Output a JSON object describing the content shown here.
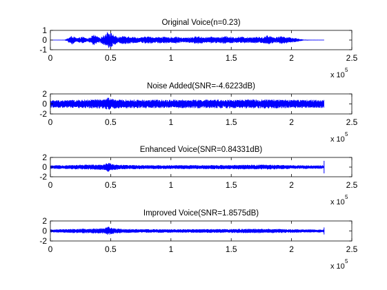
{
  "figure": {
    "background": "#ffffff",
    "signal_color": "#0000ff",
    "axis_color": "#000000"
  },
  "chart_data": [
    {
      "type": "line",
      "title": "Original Voice(n=0.23)",
      "xlabel": "",
      "ylabel": "",
      "xlim": [
        0,
        250000
      ],
      "ylim": [
        -1,
        1
      ],
      "x_ticks": [
        0,
        50000,
        100000,
        150000,
        200000,
        250000
      ],
      "x_tick_labels": [
        "0",
        "0.5",
        "1",
        "1.5",
        "2",
        "2.5"
      ],
      "y_ticks": [
        1,
        0,
        -1
      ],
      "y_tick_labels": [
        "1",
        "0",
        "-1"
      ],
      "x_multiplier_label": "x 10",
      "x_multiplier_exponent": "5",
      "signal_length": 227000,
      "noise_floor": 0.02,
      "envelope": [
        [
          0,
          0.02
        ],
        [
          12000,
          0.03
        ],
        [
          18000,
          0.45
        ],
        [
          22000,
          0.2
        ],
        [
          27000,
          0.35
        ],
        [
          31000,
          0.15
        ],
        [
          36000,
          0.55
        ],
        [
          41000,
          0.25
        ],
        [
          45000,
          0.55
        ],
        [
          48000,
          0.95
        ],
        [
          52000,
          0.6
        ],
        [
          56000,
          0.3
        ],
        [
          62000,
          0.45
        ],
        [
          68000,
          0.35
        ],
        [
          74000,
          0.25
        ],
        [
          80000,
          0.4
        ],
        [
          86000,
          0.3
        ],
        [
          92000,
          0.35
        ],
        [
          98000,
          0.3
        ],
        [
          104000,
          0.35
        ],
        [
          110000,
          0.25
        ],
        [
          116000,
          0.3
        ],
        [
          122000,
          0.4
        ],
        [
          128000,
          0.3
        ],
        [
          134000,
          0.35
        ],
        [
          140000,
          0.3
        ],
        [
          146000,
          0.4
        ],
        [
          152000,
          0.3
        ],
        [
          158000,
          0.35
        ],
        [
          164000,
          0.3
        ],
        [
          170000,
          0.35
        ],
        [
          176000,
          0.3
        ],
        [
          180000,
          0.5
        ],
        [
          186000,
          0.3
        ],
        [
          192000,
          0.4
        ],
        [
          198000,
          0.3
        ],
        [
          204000,
          0.2
        ],
        [
          210000,
          0.05
        ],
        [
          218000,
          0.03
        ],
        [
          227000,
          0.02
        ]
      ]
    },
    {
      "type": "line",
      "title": "Noise Added(SNR=-4.6223dB)",
      "xlabel": "",
      "ylabel": "",
      "xlim": [
        0,
        250000
      ],
      "ylim": [
        -2,
        2
      ],
      "x_ticks": [
        0,
        50000,
        100000,
        150000,
        200000,
        250000
      ],
      "x_tick_labels": [
        "0",
        "0.5",
        "1",
        "1.5",
        "2",
        "2.5"
      ],
      "y_ticks": [
        2,
        0,
        -2
      ],
      "y_tick_labels": [
        "2",
        "0",
        "-2"
      ],
      "x_multiplier_label": "x 10",
      "x_multiplier_exponent": "5",
      "signal_length": 227000,
      "noise_floor": 0.75,
      "envelope": [
        [
          0,
          0.75
        ],
        [
          20000,
          0.8
        ],
        [
          36000,
          0.9
        ],
        [
          45000,
          0.95
        ],
        [
          48000,
          1.3
        ],
        [
          52000,
          0.95
        ],
        [
          60000,
          0.85
        ],
        [
          100000,
          0.85
        ],
        [
          150000,
          0.85
        ],
        [
          180000,
          0.9
        ],
        [
          200000,
          0.85
        ],
        [
          227000,
          0.8
        ]
      ]
    },
    {
      "type": "line",
      "title": "Enhanced Voice(SNR=0.84331dB)",
      "xlabel": "",
      "ylabel": "",
      "xlim": [
        0,
        250000
      ],
      "ylim": [
        -2,
        2
      ],
      "x_ticks": [
        0,
        50000,
        100000,
        150000,
        200000,
        250000
      ],
      "x_tick_labels": [
        "0",
        "0.5",
        "1",
        "1.5",
        "2",
        "2.5"
      ],
      "y_ticks": [
        2,
        0,
        -2
      ],
      "y_tick_labels": [
        "2",
        "0",
        "-2"
      ],
      "x_multiplier_label": "x 10",
      "x_multiplier_exponent": "5",
      "signal_length": 227000,
      "noise_floor": 0.35,
      "envelope": [
        [
          0,
          0.35
        ],
        [
          18000,
          0.45
        ],
        [
          36000,
          0.55
        ],
        [
          45000,
          0.6
        ],
        [
          48000,
          1.0
        ],
        [
          52000,
          0.6
        ],
        [
          62000,
          0.45
        ],
        [
          100000,
          0.4
        ],
        [
          150000,
          0.45
        ],
        [
          180000,
          0.5
        ],
        [
          200000,
          0.4
        ],
        [
          227000,
          0.35
        ]
      ],
      "end_spike": 1.3
    },
    {
      "type": "line",
      "title": "Improved Voice(SNR=1.8575dB)",
      "xlabel": "",
      "ylabel": "",
      "xlim": [
        0,
        250000
      ],
      "ylim": [
        -2,
        2
      ],
      "x_ticks": [
        0,
        50000,
        100000,
        150000,
        200000,
        250000
      ],
      "x_tick_labels": [
        "0",
        "0.5",
        "1",
        "1.5",
        "2",
        "2.5"
      ],
      "y_ticks": [
        2,
        0,
        -2
      ],
      "y_tick_labels": [
        "2",
        "0",
        "-2"
      ],
      "x_multiplier_label": "x 10",
      "x_multiplier_exponent": "5",
      "signal_length": 227000,
      "noise_floor": 0.3,
      "envelope": [
        [
          0,
          0.3
        ],
        [
          18000,
          0.4
        ],
        [
          36000,
          0.5
        ],
        [
          45000,
          0.55
        ],
        [
          48000,
          0.9
        ],
        [
          52000,
          0.55
        ],
        [
          62000,
          0.4
        ],
        [
          100000,
          0.35
        ],
        [
          150000,
          0.4
        ],
        [
          180000,
          0.45
        ],
        [
          200000,
          0.35
        ],
        [
          227000,
          0.3
        ]
      ],
      "end_spike": 0.7
    }
  ]
}
